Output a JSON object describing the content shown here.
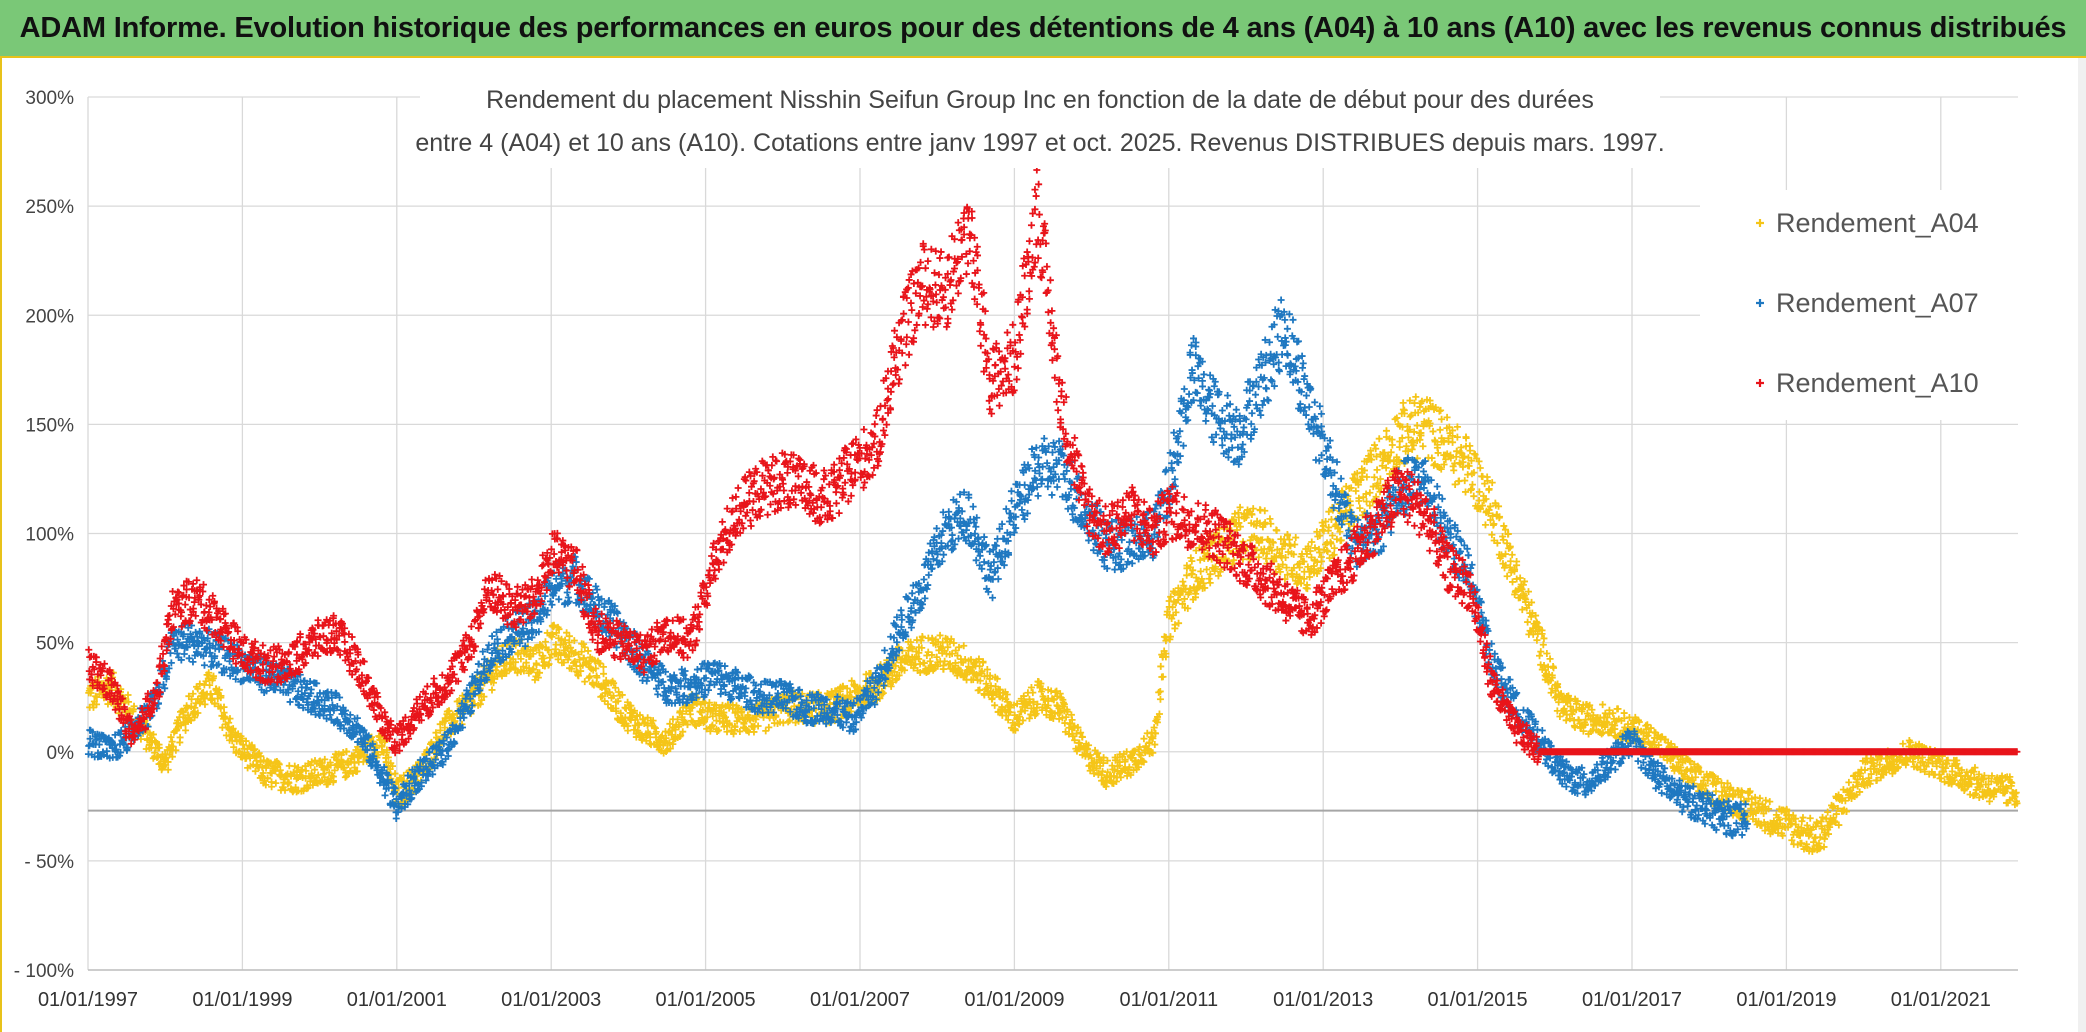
{
  "banner": {
    "title": "ADAM Informe. Evolution historique des performances en euros pour des détentions de 4 ans (A04) à 10 ans (A10) avec les revenus connus distribués"
  },
  "chart_data": {
    "type": "scatter",
    "title_line1": "Rendement du placement Nisshin Seifun Group Inc en fonction de la date de début pour des durées",
    "title_line2": "entre 4 (A04) et 10 ans (A10). Cotations entre janv 1997 et oct. 2025. Revenus DISTRIBUES depuis mars. 1997.",
    "xlabel": "",
    "ylabel": "",
    "xlim": [
      1997.0,
      2022.0
    ],
    "ylim": [
      -100,
      300
    ],
    "y_ticks": [
      {
        "value": 300,
        "label": "300%"
      },
      {
        "value": 250,
        "label": "250%"
      },
      {
        "value": 200,
        "label": "200%"
      },
      {
        "value": 150,
        "label": "150%"
      },
      {
        "value": 100,
        "label": "100%"
      },
      {
        "value": 50,
        "label": "50%"
      },
      {
        "value": 0,
        "label": "0%"
      },
      {
        "value": -50,
        "label": "- 50%"
      },
      {
        "value": -100,
        "label": "- 100%"
      }
    ],
    "x_ticks": [
      {
        "value": 1997,
        "label": "01/01/1997"
      },
      {
        "value": 1999,
        "label": "01/01/1999"
      },
      {
        "value": 2001,
        "label": "01/01/2001"
      },
      {
        "value": 2003,
        "label": "01/01/2003"
      },
      {
        "value": 2005,
        "label": "01/01/2005"
      },
      {
        "value": 2007,
        "label": "01/01/2007"
      },
      {
        "value": 2009,
        "label": "01/01/2009"
      },
      {
        "value": 2011,
        "label": "01/01/2011"
      },
      {
        "value": 2013,
        "label": "01/01/2013"
      },
      {
        "value": 2015,
        "label": "01/01/2015"
      },
      {
        "value": 2017,
        "label": "01/01/2017"
      },
      {
        "value": 2019,
        "label": "01/01/2019"
      },
      {
        "value": 2021,
        "label": "01/01/2021"
      }
    ],
    "reference_line_y": -27,
    "series": [
      {
        "name": "Rendement_A04",
        "color": "#f5c518",
        "points": [
          [
            1997.0,
            25
          ],
          [
            1997.3,
            30
          ],
          [
            1997.6,
            15
          ],
          [
            1998.0,
            -5
          ],
          [
            1998.3,
            20
          ],
          [
            1998.6,
            30
          ],
          [
            1998.9,
            5
          ],
          [
            1999.3,
            -10
          ],
          [
            1999.7,
            -12
          ],
          [
            2000.0,
            -10
          ],
          [
            2000.4,
            -5
          ],
          [
            2000.8,
            5
          ],
          [
            2001.0,
            -20
          ],
          [
            2001.3,
            -10
          ],
          [
            2001.6,
            10
          ],
          [
            2001.9,
            20
          ],
          [
            2002.2,
            35
          ],
          [
            2002.5,
            45
          ],
          [
            2002.8,
            40
          ],
          [
            2003.0,
            50
          ],
          [
            2003.3,
            45
          ],
          [
            2003.6,
            35
          ],
          [
            2003.9,
            20
          ],
          [
            2004.2,
            10
          ],
          [
            2004.5,
            5
          ],
          [
            2004.8,
            20
          ],
          [
            2005.1,
            15
          ],
          [
            2005.4,
            15
          ],
          [
            2005.7,
            15
          ],
          [
            2006.0,
            20
          ],
          [
            2006.3,
            20
          ],
          [
            2006.6,
            20
          ],
          [
            2006.9,
            25
          ],
          [
            2007.2,
            30
          ],
          [
            2007.5,
            40
          ],
          [
            2007.8,
            45
          ],
          [
            2008.1,
            45
          ],
          [
            2008.4,
            40
          ],
          [
            2008.7,
            30
          ],
          [
            2009.0,
            15
          ],
          [
            2009.3,
            25
          ],
          [
            2009.6,
            20
          ],
          [
            2009.9,
            0
          ],
          [
            2010.2,
            -10
          ],
          [
            2010.5,
            -5
          ],
          [
            2010.8,
            5
          ],
          [
            2011.0,
            60
          ],
          [
            2011.3,
            80
          ],
          [
            2011.6,
            90
          ],
          [
            2011.9,
            100
          ],
          [
            2012.2,
            100
          ],
          [
            2012.5,
            90
          ],
          [
            2012.8,
            85
          ],
          [
            2013.1,
            100
          ],
          [
            2013.4,
            115
          ],
          [
            2013.7,
            130
          ],
          [
            2014.0,
            145
          ],
          [
            2014.3,
            150
          ],
          [
            2014.6,
            140
          ],
          [
            2014.9,
            130
          ],
          [
            2015.2,
            110
          ],
          [
            2015.5,
            80
          ],
          [
            2015.8,
            50
          ],
          [
            2016.1,
            20
          ],
          [
            2016.4,
            15
          ],
          [
            2016.7,
            15
          ],
          [
            2017.0,
            10
          ],
          [
            2017.3,
            5
          ],
          [
            2017.6,
            -5
          ],
          [
            2017.9,
            -15
          ],
          [
            2018.2,
            -20
          ],
          [
            2018.5,
            -25
          ],
          [
            2018.8,
            -30
          ],
          [
            2019.1,
            -35
          ],
          [
            2019.4,
            -40
          ],
          [
            2019.7,
            -25
          ],
          [
            2020.0,
            -10
          ],
          [
            2020.3,
            -5
          ],
          [
            2020.6,
            0
          ],
          [
            2020.9,
            -5
          ],
          [
            2021.2,
            -10
          ],
          [
            2021.5,
            -15
          ],
          [
            2021.8,
            -18
          ],
          [
            2022.0,
            -18
          ]
        ]
      },
      {
        "name": "Rendement_A07",
        "color": "#1f78c1",
        "points": [
          [
            1997.0,
            5
          ],
          [
            1997.3,
            0
          ],
          [
            1997.6,
            10
          ],
          [
            1997.9,
            25
          ],
          [
            1998.1,
            50
          ],
          [
            1998.4,
            50
          ],
          [
            1998.7,
            45
          ],
          [
            1999.0,
            40
          ],
          [
            1999.3,
            35
          ],
          [
            1999.6,
            30
          ],
          [
            1999.9,
            25
          ],
          [
            2000.2,
            20
          ],
          [
            2000.5,
            10
          ],
          [
            2000.8,
            -10
          ],
          [
            2001.0,
            -25
          ],
          [
            2001.3,
            -10
          ],
          [
            2001.6,
            0
          ],
          [
            2001.9,
            20
          ],
          [
            2002.2,
            45
          ],
          [
            2002.5,
            55
          ],
          [
            2002.8,
            60
          ],
          [
            2003.0,
            75
          ],
          [
            2003.3,
            80
          ],
          [
            2003.6,
            65
          ],
          [
            2003.9,
            55
          ],
          [
            2004.2,
            40
          ],
          [
            2004.5,
            30
          ],
          [
            2004.8,
            30
          ],
          [
            2005.1,
            35
          ],
          [
            2005.4,
            30
          ],
          [
            2005.7,
            25
          ],
          [
            2006.0,
            25
          ],
          [
            2006.3,
            20
          ],
          [
            2006.6,
            20
          ],
          [
            2006.9,
            15
          ],
          [
            2007.2,
            30
          ],
          [
            2007.5,
            55
          ],
          [
            2007.8,
            75
          ],
          [
            2008.1,
            100
          ],
          [
            2008.4,
            110
          ],
          [
            2008.7,
            80
          ],
          [
            2009.0,
            110
          ],
          [
            2009.3,
            130
          ],
          [
            2009.6,
            130
          ],
          [
            2009.9,
            110
          ],
          [
            2010.2,
            95
          ],
          [
            2010.5,
            95
          ],
          [
            2010.8,
            100
          ],
          [
            2011.0,
            120
          ],
          [
            2011.3,
            175
          ],
          [
            2011.6,
            155
          ],
          [
            2011.9,
            145
          ],
          [
            2012.2,
            170
          ],
          [
            2012.5,
            195
          ],
          [
            2012.8,
            160
          ],
          [
            2013.1,
            130
          ],
          [
            2013.4,
            95
          ],
          [
            2013.7,
            100
          ],
          [
            2014.0,
            120
          ],
          [
            2014.3,
            125
          ],
          [
            2014.6,
            100
          ],
          [
            2014.9,
            80
          ],
          [
            2015.2,
            40
          ],
          [
            2015.5,
            20
          ],
          [
            2015.8,
            5
          ],
          [
            2016.1,
            -10
          ],
          [
            2016.4,
            -15
          ],
          [
            2016.7,
            -5
          ],
          [
            2017.0,
            5
          ],
          [
            2017.3,
            -10
          ],
          [
            2017.6,
            -20
          ],
          [
            2017.9,
            -25
          ],
          [
            2018.2,
            -30
          ],
          [
            2018.5,
            -32
          ]
        ]
      },
      {
        "name": "Rendement_A10",
        "color": "#e8141a",
        "points": [
          [
            1997.0,
            40
          ],
          [
            1997.3,
            30
          ],
          [
            1997.6,
            5
          ],
          [
            1997.9,
            30
          ],
          [
            1998.1,
            65
          ],
          [
            1998.4,
            70
          ],
          [
            1998.7,
            60
          ],
          [
            1999.0,
            45
          ],
          [
            1999.3,
            40
          ],
          [
            1999.6,
            40
          ],
          [
            1999.9,
            50
          ],
          [
            2000.2,
            55
          ],
          [
            2000.5,
            40
          ],
          [
            2000.8,
            15
          ],
          [
            2001.0,
            5
          ],
          [
            2001.3,
            20
          ],
          [
            2001.6,
            30
          ],
          [
            2001.9,
            45
          ],
          [
            2002.2,
            75
          ],
          [
            2002.5,
            65
          ],
          [
            2002.8,
            70
          ],
          [
            2003.0,
            90
          ],
          [
            2003.3,
            85
          ],
          [
            2003.6,
            55
          ],
          [
            2003.9,
            50
          ],
          [
            2004.2,
            45
          ],
          [
            2004.5,
            55
          ],
          [
            2004.8,
            50
          ],
          [
            2005.1,
            85
          ],
          [
            2005.4,
            110
          ],
          [
            2005.7,
            120
          ],
          [
            2006.0,
            125
          ],
          [
            2006.3,
            120
          ],
          [
            2006.6,
            115
          ],
          [
            2006.9,
            130
          ],
          [
            2007.2,
            140
          ],
          [
            2007.5,
            185
          ],
          [
            2007.8,
            215
          ],
          [
            2008.1,
            210
          ],
          [
            2008.4,
            240
          ],
          [
            2008.7,
            170
          ],
          [
            2009.0,
            180
          ],
          [
            2009.3,
            250
          ],
          [
            2009.6,
            160
          ],
          [
            2009.9,
            115
          ],
          [
            2010.2,
            100
          ],
          [
            2010.5,
            110
          ],
          [
            2010.8,
            100
          ],
          [
            2011.0,
            110
          ],
          [
            2011.3,
            105
          ],
          [
            2011.6,
            100
          ],
          [
            2011.9,
            90
          ],
          [
            2012.2,
            80
          ],
          [
            2012.5,
            70
          ],
          [
            2012.8,
            60
          ],
          [
            2013.1,
            75
          ],
          [
            2013.4,
            90
          ],
          [
            2013.7,
            105
          ],
          [
            2014.0,
            120
          ],
          [
            2014.3,
            110
          ],
          [
            2014.6,
            85
          ],
          [
            2014.9,
            75
          ],
          [
            2015.2,
            30
          ],
          [
            2015.5,
            10
          ],
          [
            2015.8,
            0
          ],
          [
            2016.5,
            0
          ],
          [
            2017.5,
            0
          ],
          [
            2018.5,
            0
          ],
          [
            2019.5,
            0
          ],
          [
            2020.5,
            0
          ],
          [
            2021.5,
            0
          ],
          [
            2022.0,
            0
          ]
        ]
      }
    ]
  }
}
